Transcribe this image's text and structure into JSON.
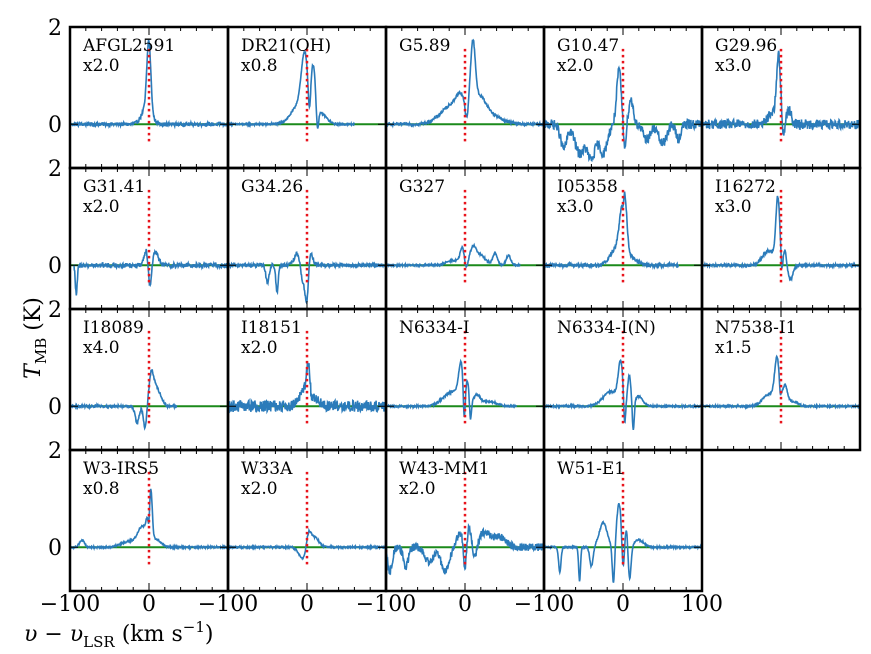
{
  "chart_data": {
    "type": "line",
    "ylabel_main": "T",
    "ylabel_sub": "MB",
    "ylabel_unit": " (K)",
    "xlabel_main": "υ − υ",
    "xlabel_sub": "LSR",
    "xlabel_unit_pre": " (km s",
    "xlabel_unit_sup": "−1",
    "xlabel_unit_post": ")",
    "xlim": [
      -100,
      100
    ],
    "ylim": [
      -0.9,
      2.0
    ],
    "x_tick_labels": [
      "−100",
      "0",
      "−100",
      "0",
      "−100",
      "0",
      "−100",
      "0",
      "100"
    ],
    "y_tick_labels": [
      "2",
      "0"
    ],
    "colors": {
      "spectrum": "#2b7bba",
      "baseline": "#1b8a1b",
      "marker": "#e8141c"
    },
    "panels": [
      {
        "name": "AFGL2591",
        "scale": "x2.0",
        "xrange": [
          -100,
          100
        ],
        "features": [
          [
            0,
            1.5,
            2.5
          ],
          [
            -3,
            0.35,
            6
          ],
          [
            2,
            -0.15,
            2
          ]
        ],
        "noise": 0.04
      },
      {
        "name": "DR21(OH)",
        "scale": "x0.8",
        "xrange": [
          -100,
          60
        ],
        "features": [
          [
            -5,
            0.5,
            12
          ],
          [
            -3,
            1.0,
            4
          ],
          [
            3,
            -0.6,
            1.5
          ],
          [
            8,
            0.9,
            3
          ],
          [
            13,
            -0.5,
            1.5
          ],
          [
            20,
            0.15,
            6
          ]
        ],
        "noise": 0.02
      },
      {
        "name": "G5.89",
        "scale": "",
        "xrange": [
          -100,
          100
        ],
        "features": [
          [
            -15,
            0.4,
            15
          ],
          [
            -5,
            0.3,
            6
          ],
          [
            2,
            -0.35,
            2
          ],
          [
            10,
            1.3,
            3
          ],
          [
            18,
            0.4,
            8
          ],
          [
            30,
            0.2,
            15
          ]
        ],
        "noise": 0.03
      },
      {
        "name": "G10.47",
        "scale": "x2.0",
        "xrange": [
          -100,
          100
        ],
        "features": [
          [
            -75,
            -0.5,
            4
          ],
          [
            -55,
            -0.6,
            6
          ],
          [
            -40,
            -0.7,
            5
          ],
          [
            -25,
            -0.6,
            5
          ],
          [
            -5,
            1.1,
            3
          ],
          [
            2,
            -0.5,
            2
          ],
          [
            10,
            0.5,
            3
          ],
          [
            30,
            -0.3,
            5
          ],
          [
            50,
            -0.4,
            5
          ],
          [
            70,
            -0.3,
            3
          ]
        ],
        "noise": 0.1
      },
      {
        "name": "G29.96",
        "scale": "x3.0",
        "xrange": [
          -100,
          100
        ],
        "features": [
          [
            -10,
            0.25,
            6
          ],
          [
            -3,
            1.3,
            2.5
          ],
          [
            3,
            -0.3,
            1.5
          ],
          [
            10,
            0.3,
            3
          ]
        ],
        "noise": 0.1
      },
      {
        "name": "G31.41",
        "scale": "x2.0",
        "xrange": [
          -95,
          100
        ],
        "features": [
          [
            -92,
            -0.6,
            1.2
          ],
          [
            -3,
            0.35,
            3
          ],
          [
            1,
            -0.6,
            2
          ],
          [
            8,
            0.25,
            4
          ]
        ],
        "noise": 0.05
      },
      {
        "name": "G34.26",
        "scale": "",
        "xrange": [
          -100,
          100
        ],
        "features": [
          [
            -50,
            -0.35,
            2
          ],
          [
            -38,
            -0.55,
            1.5
          ],
          [
            -12,
            0.25,
            4
          ],
          [
            -5,
            -0.4,
            3
          ],
          [
            0,
            -0.75,
            2
          ],
          [
            4,
            0.3,
            3
          ]
        ],
        "noise": 0.04
      },
      {
        "name": "G327",
        "scale": "",
        "xrange": [
          -100,
          70
        ],
        "features": [
          [
            -15,
            0.1,
            8
          ],
          [
            -3,
            0.35,
            3
          ],
          [
            1,
            -0.2,
            2
          ],
          [
            10,
            0.35,
            4
          ],
          [
            20,
            0.2,
            6
          ],
          [
            38,
            0.25,
            3
          ],
          [
            55,
            0.2,
            3
          ]
        ],
        "noise": 0.02
      },
      {
        "name": "I05358",
        "scale": "x3.0",
        "xrange": [
          -100,
          70
        ],
        "features": [
          [
            -8,
            0.35,
            8
          ],
          [
            -3,
            0.5,
            3
          ],
          [
            0,
            -0.3,
            1
          ],
          [
            2,
            1.15,
            3
          ],
          [
            10,
            0.15,
            8
          ]
        ],
        "noise": 0.04
      },
      {
        "name": "I16272",
        "scale": "x3.0",
        "xrange": [
          -100,
          100
        ],
        "features": [
          [
            -15,
            0.3,
            8
          ],
          [
            -4,
            1.3,
            2.5
          ],
          [
            1,
            -0.3,
            1
          ],
          [
            5,
            0.3,
            2
          ],
          [
            12,
            -0.3,
            3
          ]
        ],
        "noise": 0.03
      },
      {
        "name": "I18089",
        "scale": "x4.0",
        "xrange": [
          -100,
          35
        ],
        "features": [
          [
            -15,
            -0.35,
            2.5
          ],
          [
            -5,
            -0.45,
            2
          ],
          [
            3,
            0.6,
            3
          ],
          [
            10,
            0.35,
            5
          ]
        ],
        "noise": 0.03
      },
      {
        "name": "I18151",
        "scale": "x2.0",
        "xrange": [
          -100,
          100
        ],
        "features": [
          [
            -5,
            0.3,
            5
          ],
          [
            2,
            0.75,
            2.5
          ],
          [
            5,
            -0.2,
            2
          ],
          [
            10,
            0.15,
            6
          ]
        ],
        "noise": 0.12
      },
      {
        "name": "N6334-I",
        "scale": "",
        "xrange": [
          -100,
          65
        ],
        "features": [
          [
            -15,
            0.3,
            12
          ],
          [
            -5,
            0.7,
            3
          ],
          [
            -1,
            -0.7,
            1.2
          ],
          [
            3,
            0.4,
            2
          ],
          [
            7,
            -0.4,
            1.2
          ],
          [
            15,
            0.2,
            4
          ],
          [
            30,
            0.1,
            10
          ]
        ],
        "noise": 0.02
      },
      {
        "name": "N6334-I(N)",
        "scale": "",
        "xrange": [
          -100,
          100
        ],
        "features": [
          [
            -15,
            0.3,
            10
          ],
          [
            -3,
            0.8,
            3
          ],
          [
            2,
            -0.6,
            1.2
          ],
          [
            8,
            0.6,
            2
          ],
          [
            13,
            -0.6,
            1.2
          ],
          [
            20,
            0.2,
            5
          ]
        ],
        "noise": 0.02
      },
      {
        "name": "N7538-I1",
        "scale": "x1.5",
        "xrange": [
          -100,
          100
        ],
        "features": [
          [
            -15,
            0.25,
            8
          ],
          [
            -5,
            0.9,
            3
          ],
          [
            -1,
            -0.2,
            1
          ],
          [
            5,
            0.4,
            3
          ],
          [
            15,
            0.1,
            6
          ]
        ],
        "noise": 0.02
      },
      {
        "name": "W3-IRS5",
        "scale": "x0.8",
        "xrange": [
          -100,
          100
        ],
        "features": [
          [
            -85,
            0.15,
            3
          ],
          [
            -25,
            0.12,
            10
          ],
          [
            -8,
            0.4,
            6
          ],
          [
            -2,
            0.3,
            2
          ],
          [
            0,
            -0.5,
            1.2
          ],
          [
            2,
            1.1,
            2
          ],
          [
            10,
            0.15,
            6
          ]
        ],
        "noise": 0.02
      },
      {
        "name": "W33A",
        "scale": "x2.0",
        "xrange": [
          -100,
          100
        ],
        "features": [
          [
            -5,
            -0.25,
            5
          ],
          [
            2,
            0.35,
            3
          ],
          [
            10,
            0.2,
            5
          ]
        ],
        "noise": 0.02
      },
      {
        "name": "W43-MM1",
        "scale": "x2.0",
        "xrange": [
          -100,
          100
        ],
        "features": [
          [
            -95,
            -0.5,
            3
          ],
          [
            -75,
            -0.4,
            3
          ],
          [
            -45,
            -0.3,
            6
          ],
          [
            -25,
            -0.5,
            5
          ],
          [
            -5,
            0.3,
            5
          ],
          [
            0,
            -0.7,
            2
          ],
          [
            5,
            0.4,
            3
          ],
          [
            12,
            -0.3,
            3
          ],
          [
            25,
            0.3,
            8
          ],
          [
            45,
            0.2,
            8
          ]
        ],
        "noise": 0.08
      },
      {
        "name": "W51-E1",
        "scale": "",
        "xrange": [
          -100,
          100
        ],
        "features": [
          [
            -80,
            -0.5,
            1.5
          ],
          [
            -55,
            -0.7,
            1.2
          ],
          [
            -40,
            -0.4,
            2
          ],
          [
            -25,
            0.5,
            5
          ],
          [
            -12,
            -0.8,
            1.5
          ],
          [
            -5,
            0.9,
            3
          ],
          [
            0,
            -0.6,
            1.5
          ],
          [
            5,
            0.5,
            2
          ],
          [
            8,
            -0.8,
            2
          ],
          [
            20,
            0.15,
            6
          ]
        ],
        "noise": 0.02
      }
    ]
  }
}
